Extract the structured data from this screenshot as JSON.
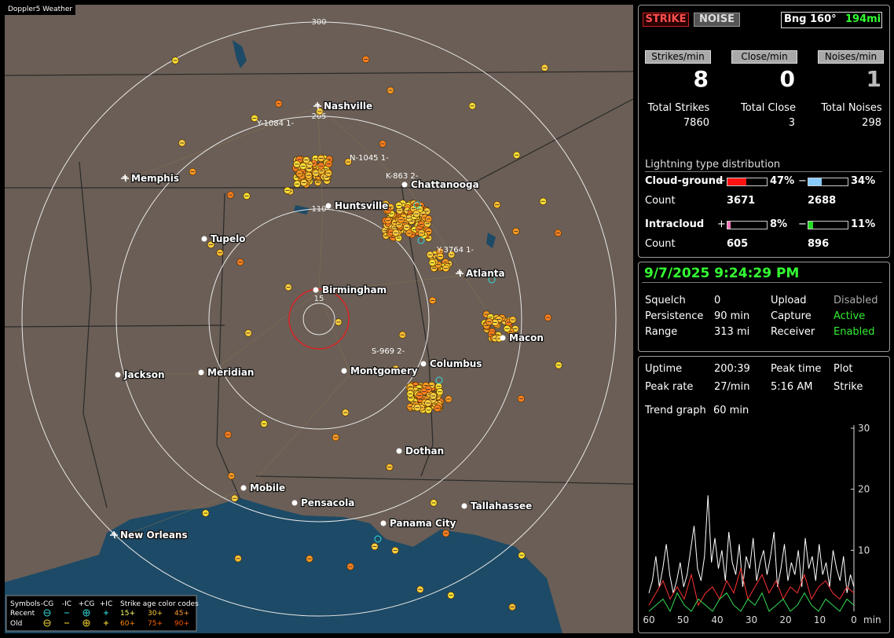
{
  "map": {
    "title": "Doppler5 Weather",
    "range_labels": [
      "300",
      "205",
      "110",
      "15"
    ],
    "cities": [
      "Nashville",
      "Memphis",
      "Chattanooga",
      "Huntsville",
      "Tupelo",
      "Atlanta",
      "Birmingham",
      "Macon",
      "Jackson",
      "Meridian",
      "Montgomery",
      "Columbus",
      "Dothan",
      "Mobile",
      "Pensacola",
      "Tallahassee",
      "Panama City",
      "New Orleans"
    ],
    "storms": [
      "Y-1084 1-",
      "N-1045 1-",
      "K-863 2-",
      "Y-3764 1-",
      "S-969 2-"
    ],
    "legend": {
      "symbols_label": "Symbols",
      "symbols": [
        "-CG",
        "-IC",
        "+CG",
        "+IC"
      ],
      "age_title": "Strike age color codes",
      "rows": [
        {
          "label": "Recent",
          "ages": [
            "15+",
            "30+",
            "45+"
          ]
        },
        {
          "label": "Old",
          "ages": [
            "60+",
            "75+",
            "90+"
          ]
        }
      ]
    }
  },
  "panel": {
    "modes": [
      "STRIKE",
      "NOISE"
    ],
    "bearing": "Bng 160°",
    "distance": "194mi",
    "rates": [
      {
        "label": "Strikes/min",
        "value": 8
      },
      {
        "label": "Close/min",
        "value": 0
      },
      {
        "label": "Noises/min",
        "value": 1
      }
    ],
    "totals": [
      {
        "label": "Total Strikes",
        "value": 7860
      },
      {
        "label": "Total Close",
        "value": 3
      },
      {
        "label": "Total Noises",
        "value": 298
      }
    ],
    "distribution": {
      "title": "Lightning type distribution",
      "signs": [
        "+",
        "−"
      ],
      "count_label": "Count",
      "rows": [
        {
          "label": "Cloud-ground",
          "pos": {
            "value": 47,
            "label": "47%",
            "count": 3671
          },
          "neg": {
            "value": 34,
            "label": "34%",
            "count": 2688
          }
        },
        {
          "label": "Intracloud",
          "pos": {
            "value": 8,
            "label": "8%",
            "count": 605
          },
          "neg": {
            "value": 11,
            "label": "11%",
            "count": 896
          }
        }
      ]
    },
    "datetime": "9/7/2025 9:24:29 PM",
    "status": [
      [
        "Squelch",
        "0",
        "Upload",
        "Disabled"
      ],
      [
        "Persistence",
        "90 min",
        "Capture",
        "Active"
      ],
      [
        "Range",
        "313 mi",
        "Receiver",
        "Enabled"
      ]
    ],
    "stats": [
      [
        "Uptime",
        "200:39",
        "Peak time",
        "Plot"
      ],
      [
        "Peak rate",
        "27/min",
        "5:16 AM",
        "Strike"
      ]
    ],
    "trend_label": "Trend graph",
    "trend_window": "60 min",
    "trend": {
      "xlim": [
        60,
        0
      ],
      "ylim": [
        0,
        30
      ],
      "yticks": [
        10,
        20,
        30
      ],
      "xticks": [
        60,
        50,
        40,
        30,
        20,
        10,
        0
      ],
      "x_label": "min",
      "series": [
        {
          "color": "#ffffff",
          "values": [
            3,
            5,
            9,
            4,
            7,
            11,
            6,
            3,
            5,
            8,
            4,
            6,
            10,
            14,
            7,
            5,
            9,
            19,
            8,
            12,
            7,
            10,
            5,
            13,
            8,
            6,
            11,
            4,
            9,
            7,
            12,
            5,
            8,
            10,
            6,
            9,
            13,
            4,
            7,
            11,
            5,
            8,
            6,
            10,
            4,
            12,
            7,
            9,
            5,
            11,
            6,
            8,
            4,
            10,
            7,
            5,
            9,
            3,
            6,
            4
          ]
        },
        {
          "color": "#ff3333",
          "values": [
            1,
            3,
            5,
            2,
            4,
            2,
            6,
            1,
            3,
            4,
            2,
            5,
            3,
            7,
            2,
            4,
            6,
            3,
            5,
            2,
            4,
            3,
            6,
            2,
            4,
            5,
            3,
            2,
            4,
            3
          ]
        },
        {
          "color": "#33dd55",
          "values": [
            0,
            1,
            2,
            0,
            3,
            1,
            0,
            2,
            1,
            0,
            2,
            3,
            1,
            0,
            2,
            1,
            3,
            0,
            1,
            2,
            0,
            1,
            3,
            1,
            0,
            2,
            1,
            0,
            2,
            1
          ]
        }
      ]
    }
  }
}
